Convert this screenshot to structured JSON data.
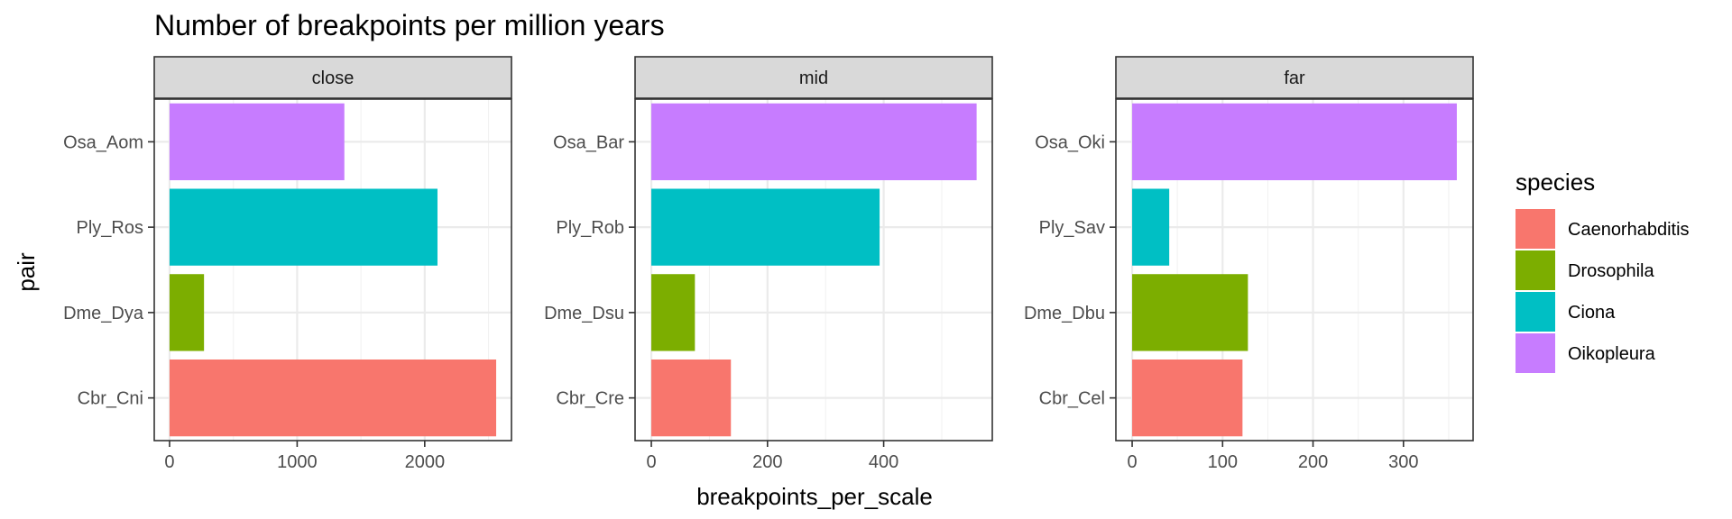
{
  "chart_data": {
    "type": "bar",
    "orientation": "horizontal",
    "title": "Number of breakpoints per million years",
    "xlabel": "breakpoints_per_scale",
    "ylabel": "pair",
    "grid": true,
    "legend": {
      "title": "species",
      "position": "right",
      "entries": [
        {
          "name": "Caenorhabditis",
          "color": "#F8766D"
        },
        {
          "name": "Drosophila",
          "color": "#7CAE00"
        },
        {
          "name": "Ciona",
          "color": "#00BFC4"
        },
        {
          "name": "Oikopleura",
          "color": "#C77CFF"
        }
      ]
    },
    "facets": [
      {
        "label": "close",
        "xlim": [
          -120,
          2680
        ],
        "xticks": [
          0,
          1000,
          2000
        ],
        "xminor": [
          500,
          1500,
          2500
        ],
        "bars": [
          {
            "pair": "Osa_Aom",
            "species": "Oikopleura",
            "value": 1370
          },
          {
            "pair": "Ply_Ros",
            "species": "Ciona",
            "value": 2100
          },
          {
            "pair": "Dme_Dya",
            "species": "Drosophila",
            "value": 270
          },
          {
            "pair": "Cbr_Cni",
            "species": "Caenorhabditis",
            "value": 2560
          }
        ]
      },
      {
        "label": "mid",
        "xlim": [
          -28,
          587
        ],
        "xticks": [
          0,
          200,
          400
        ],
        "xminor": [
          100,
          300,
          500
        ],
        "bars": [
          {
            "pair": "Osa_Bar",
            "species": "Oikopleura",
            "value": 560
          },
          {
            "pair": "Ply_Rob",
            "species": "Ciona",
            "value": 393
          },
          {
            "pair": "Dme_Dsu",
            "species": "Drosophila",
            "value": 75
          },
          {
            "pair": "Cbr_Cre",
            "species": "Caenorhabditis",
            "value": 137
          }
        ]
      },
      {
        "label": "far",
        "xlim": [
          -18,
          377
        ],
        "xticks": [
          0,
          100,
          200,
          300
        ],
        "xminor": [
          50,
          150,
          250,
          350
        ],
        "bars": [
          {
            "pair": "Osa_Oki",
            "species": "Oikopleura",
            "value": 359
          },
          {
            "pair": "Ply_Sav",
            "species": "Ciona",
            "value": 41
          },
          {
            "pair": "Dme_Dbu",
            "species": "Drosophila",
            "value": 128
          },
          {
            "pair": "Cbr_Cel",
            "species": "Caenorhabditis",
            "value": 122
          }
        ]
      }
    ]
  }
}
